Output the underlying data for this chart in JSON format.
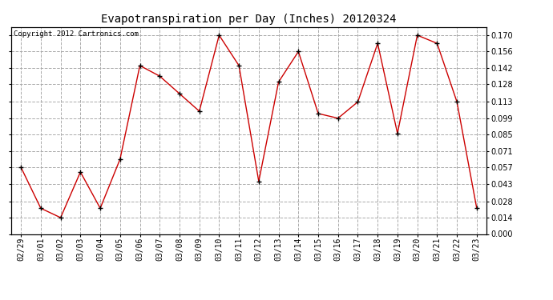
{
  "title": "Evapotranspiration per Day (Inches) 20120324",
  "copyright_text": "Copyright 2012 Cartronics.com",
  "dates": [
    "02/29",
    "03/01",
    "03/02",
    "03/03",
    "03/04",
    "03/05",
    "03/06",
    "03/07",
    "03/08",
    "03/09",
    "03/10",
    "03/11",
    "03/12",
    "03/13",
    "03/14",
    "03/15",
    "03/16",
    "03/17",
    "03/18",
    "03/19",
    "03/20",
    "03/21",
    "03/22",
    "03/23"
  ],
  "values": [
    0.057,
    0.022,
    0.014,
    0.053,
    0.022,
    0.064,
    0.144,
    0.135,
    0.12,
    0.105,
    0.17,
    0.144,
    0.045,
    0.13,
    0.156,
    0.103,
    0.099,
    0.113,
    0.163,
    0.086,
    0.17,
    0.163,
    0.113,
    0.022
  ],
  "line_color": "#cc0000",
  "marker": "+",
  "marker_color": "#000000",
  "marker_size": 5,
  "marker_lw": 1.0,
  "line_width": 1.0,
  "background_color": "#ffffff",
  "plot_bg_color": "#ffffff",
  "grid_color": "#aaaaaa",
  "grid_style": "--",
  "ylim": [
    0.0,
    0.177
  ],
  "yticks": [
    0.0,
    0.014,
    0.028,
    0.043,
    0.057,
    0.071,
    0.085,
    0.099,
    0.113,
    0.128,
    0.142,
    0.156,
    0.17
  ],
  "title_fontsize": 10,
  "tick_fontsize": 7,
  "copyright_fontsize": 6.5
}
